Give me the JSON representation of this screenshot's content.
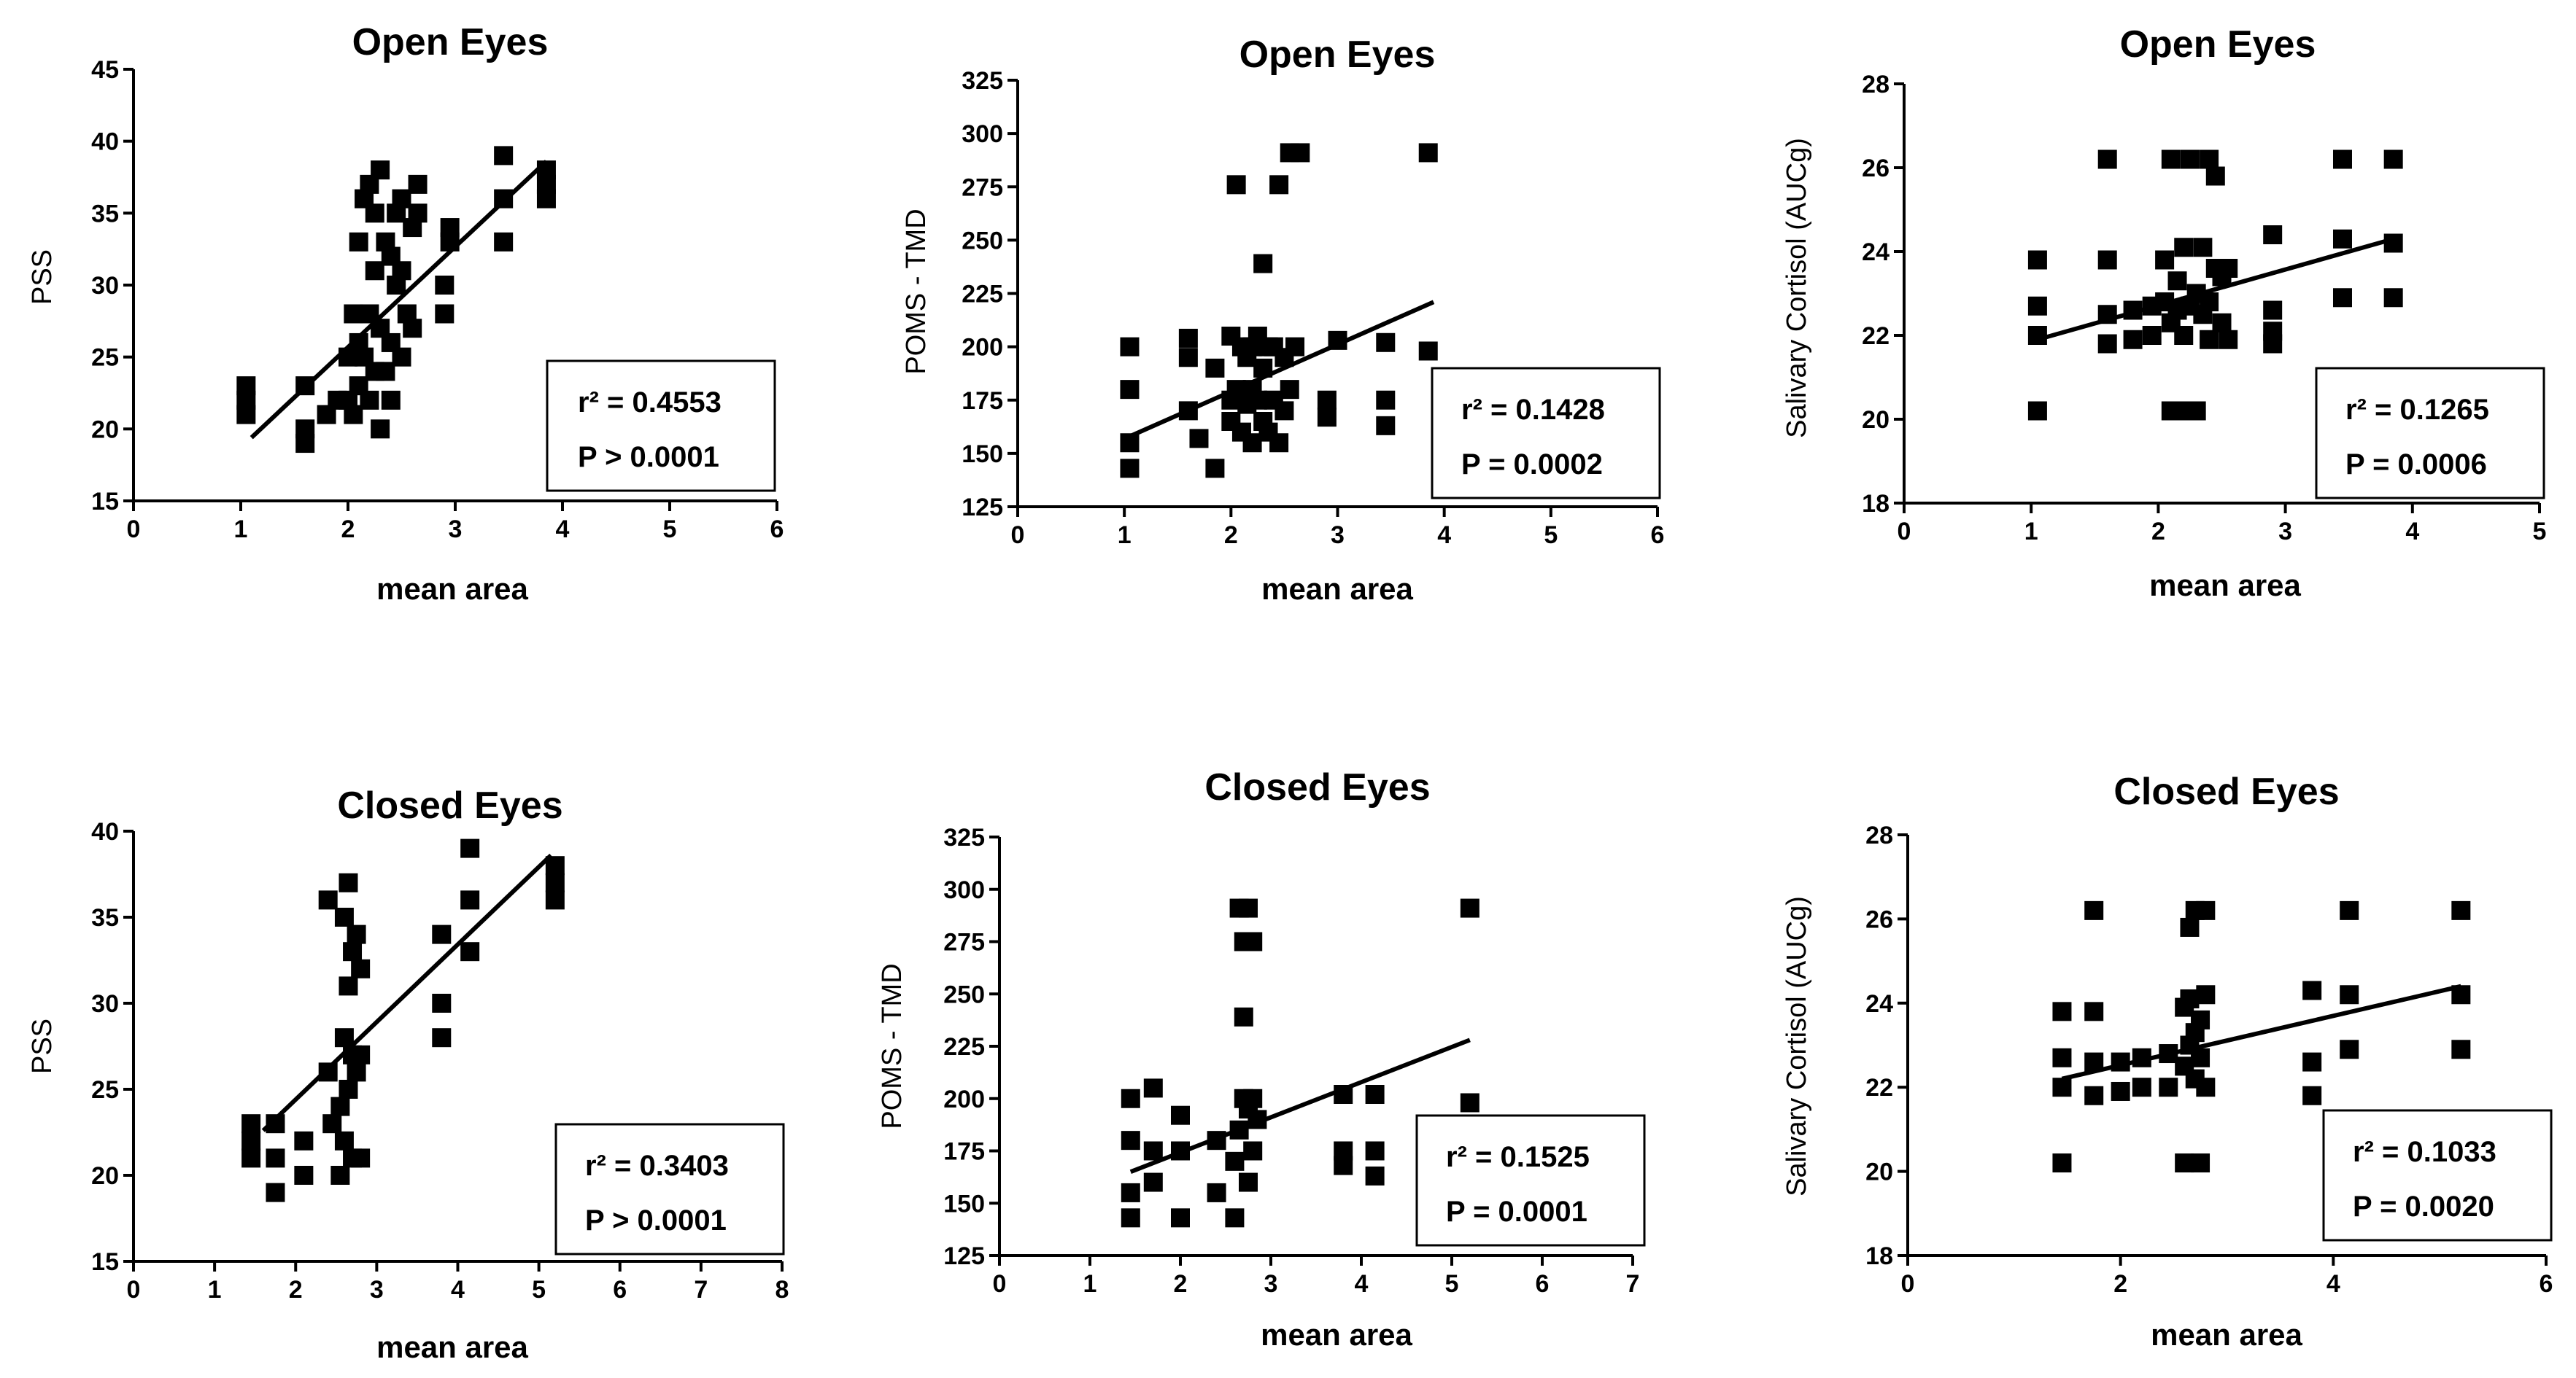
{
  "figure": {
    "panels": [
      {
        "title": "Open Eyes",
        "xlabel": "mean area",
        "ylabel": "PSS",
        "r2_label": "r² = 0.4553",
        "p_label": "P  > 0.0001"
      },
      {
        "title": "Open Eyes",
        "xlabel": "mean area",
        "ylabel": "POMS - TMD",
        "r2_label": "r² = 0.1428",
        "p_label": "P  = 0.0002"
      },
      {
        "title": "Open Eyes",
        "xlabel": "mean area",
        "ylabel": "Salivary Cortisol (AUCg)",
        "r2_label": "r² = 0.1265",
        "p_label": "P  = 0.0006"
      },
      {
        "title": "Closed Eyes",
        "xlabel": "mean area",
        "ylabel": "PSS",
        "r2_label": "r² = 0.3403",
        "p_label": "P  > 0.0001"
      },
      {
        "title": "Closed Eyes",
        "xlabel": "mean area",
        "ylabel": "POMS - TMD",
        "r2_label": "r² = 0.1525",
        "p_label": "P  = 0.0001"
      },
      {
        "title": "Closed Eyes",
        "xlabel": "mean area",
        "ylabel": "Salivary Cortisol (AUCg)",
        "r2_label": "r² = 0.1033",
        "p_label": "P  = 0.0020"
      }
    ]
  },
  "chart_data": [
    {
      "type": "scatter",
      "title": "Open Eyes",
      "xlabel": "mean area",
      "ylabel": "PSS",
      "xlim": [
        0,
        6
      ],
      "ylim": [
        15,
        45
      ],
      "xticks": [
        0,
        1,
        2,
        3,
        4,
        5,
        6
      ],
      "yticks": [
        15,
        20,
        25,
        30,
        35,
        40,
        45
      ],
      "x": [
        1.05,
        1.05,
        1.05,
        1.6,
        1.6,
        1.6,
        1.8,
        1.9,
        2.0,
        2.0,
        2.05,
        2.05,
        2.1,
        2.1,
        2.1,
        2.15,
        2.15,
        2.2,
        2.2,
        2.2,
        2.25,
        2.25,
        2.25,
        2.3,
        2.3,
        2.3,
        2.35,
        2.35,
        2.4,
        2.4,
        2.4,
        2.45,
        2.45,
        2.5,
        2.5,
        2.5,
        2.55,
        2.6,
        2.6,
        2.65,
        2.65,
        2.9,
        2.9,
        2.95,
        2.95,
        3.45,
        3.45,
        3.45,
        3.85,
        3.85,
        3.85
      ],
      "y": [
        21,
        22,
        23,
        19,
        20,
        23,
        21,
        22,
        22,
        25,
        21,
        28,
        23,
        26,
        33,
        25,
        36,
        22,
        28,
        37,
        24,
        31,
        35,
        20,
        27,
        38,
        24,
        33,
        22,
        26,
        32,
        30,
        35,
        25,
        31,
        36,
        28,
        27,
        34,
        35,
        37,
        28,
        30,
        33,
        34,
        33,
        36,
        39,
        36,
        37,
        38
      ],
      "fit": {
        "x": [
          1.1,
          3.85
        ],
        "y": [
          19.4,
          38.6
        ]
      },
      "r2": 0.4553,
      "p": "> 0.0001"
    },
    {
      "type": "scatter",
      "title": "Open Eyes",
      "xlabel": "mean area",
      "ylabel": "POMS - TMD",
      "xlim": [
        0,
        6
      ],
      "ylim": [
        125,
        325
      ],
      "xticks": [
        0,
        1,
        2,
        3,
        4,
        5,
        6
      ],
      "yticks": [
        125,
        150,
        175,
        200,
        225,
        250,
        275,
        300,
        325
      ],
      "x": [
        1.05,
        1.05,
        1.05,
        1.05,
        1.6,
        1.6,
        1.6,
        1.7,
        1.85,
        1.85,
        2.0,
        2.0,
        2.0,
        2.05,
        2.05,
        2.1,
        2.1,
        2.15,
        2.15,
        2.2,
        2.2,
        2.2,
        2.25,
        2.25,
        2.3,
        2.3,
        2.3,
        2.35,
        2.35,
        2.4,
        2.4,
        2.45,
        2.45,
        2.5,
        2.5,
        2.55,
        2.55,
        2.6,
        2.65,
        2.9,
        2.9,
        3.0,
        3.45,
        3.45,
        3.45,
        3.85,
        3.85
      ],
      "y": [
        143,
        155,
        180,
        200,
        170,
        195,
        204,
        157,
        143,
        190,
        165,
        175,
        205,
        180,
        276,
        160,
        200,
        173,
        195,
        155,
        180,
        200,
        175,
        205,
        165,
        190,
        239,
        160,
        200,
        175,
        200,
        155,
        276,
        170,
        195,
        180,
        291,
        200,
        291,
        167,
        175,
        203,
        163,
        175,
        202,
        198,
        291
      ],
      "fit": {
        "x": [
          1.05,
          3.9
        ],
        "y": [
          158,
          221
        ]
      },
      "r2": 0.1428,
      "p": "= 0.0002"
    },
    {
      "type": "scatter",
      "title": "Open Eyes",
      "xlabel": "mean area",
      "ylabel": "Salivary Cortisol (AUCg)",
      "xlim": [
        0,
        5
      ],
      "ylim": [
        18,
        28
      ],
      "xticks": [
        0,
        1,
        2,
        3,
        4,
        5
      ],
      "yticks": [
        18,
        20,
        22,
        24,
        26,
        28
      ],
      "x": [
        1.05,
        1.05,
        1.05,
        1.05,
        1.6,
        1.6,
        1.6,
        1.6,
        1.8,
        1.8,
        1.95,
        1.95,
        2.05,
        2.05,
        2.1,
        2.1,
        2.1,
        2.15,
        2.15,
        2.2,
        2.2,
        2.2,
        2.25,
        2.25,
        2.3,
        2.3,
        2.35,
        2.35,
        2.4,
        2.4,
        2.4,
        2.45,
        2.45,
        2.5,
        2.5,
        2.55,
        2.55,
        2.9,
        2.9,
        2.9,
        2.9,
        3.45,
        3.45,
        3.45,
        3.85,
        3.85,
        3.85
      ],
      "y": [
        20.2,
        22.0,
        22.7,
        23.8,
        21.8,
        22.5,
        23.8,
        26.2,
        21.9,
        22.6,
        22.0,
        22.7,
        22.8,
        23.8,
        20.2,
        22.3,
        26.2,
        22.6,
        23.3,
        20.2,
        22.0,
        24.1,
        22.7,
        26.2,
        20.2,
        23.0,
        22.5,
        24.1,
        21.9,
        22.8,
        26.2,
        23.6,
        25.8,
        22.3,
        23.4,
        21.9,
        23.6,
        21.8,
        22.1,
        22.6,
        24.4,
        22.9,
        24.3,
        26.2,
        22.9,
        24.2,
        26.2
      ],
      "fit": {
        "x": [
          1.05,
          3.85
        ],
        "y": [
          21.9,
          24.3
        ]
      },
      "r2": 0.1265,
      "p": "= 0.0006"
    },
    {
      "type": "scatter",
      "title": "Closed Eyes",
      "xlabel": "mean area",
      "ylabel": "PSS",
      "xlim": [
        0,
        8
      ],
      "ylim": [
        15,
        40
      ],
      "xticks": [
        0,
        1,
        2,
        3,
        4,
        5,
        6,
        7,
        8
      ],
      "yticks": [
        15,
        20,
        25,
        30,
        35,
        40
      ],
      "x": [
        1.45,
        1.45,
        1.45,
        1.75,
        1.75,
        1.75,
        2.1,
        2.1,
        2.4,
        2.4,
        2.45,
        2.55,
        2.55,
        2.6,
        2.6,
        2.6,
        2.65,
        2.65,
        2.65,
        2.7,
        2.7,
        2.7,
        2.75,
        2.75,
        2.8,
        2.8,
        2.8,
        3.8,
        3.8,
        3.8,
        4.15,
        4.15,
        4.15,
        5.2,
        5.2,
        5.2
      ],
      "y": [
        21,
        22,
        23,
        19,
        21,
        23,
        20,
        22,
        26,
        36,
        23,
        20,
        24,
        22,
        28,
        35,
        25,
        31,
        37,
        21,
        27,
        33,
        26,
        34,
        21,
        27,
        32,
        28,
        30,
        34,
        33,
        36,
        39,
        36,
        37,
        38
      ],
      "fit": {
        "x": [
          1.6,
          5.15
        ],
        "y": [
          22.6,
          38.6
        ]
      },
      "r2": 0.3403,
      "p": "> 0.0001"
    },
    {
      "type": "scatter",
      "title": "Closed Eyes",
      "xlabel": "mean area",
      "ylabel": "POMS - TMD",
      "xlim": [
        0,
        7
      ],
      "ylim": [
        125,
        325
      ],
      "xticks": [
        0,
        1,
        2,
        3,
        4,
        5,
        6,
        7
      ],
      "yticks": [
        125,
        150,
        175,
        200,
        225,
        250,
        275,
        300,
        325
      ],
      "x": [
        1.45,
        1.45,
        1.45,
        1.45,
        1.7,
        1.7,
        1.7,
        2.0,
        2.0,
        2.0,
        2.4,
        2.4,
        2.6,
        2.6,
        2.65,
        2.65,
        2.7,
        2.7,
        2.7,
        2.75,
        2.75,
        2.75,
        2.8,
        2.8,
        2.8,
        2.85,
        3.8,
        3.8,
        3.8,
        4.15,
        4.15,
        4.15,
        5.2,
        5.2
      ],
      "y": [
        143,
        155,
        180,
        200,
        160,
        175,
        205,
        143,
        175,
        192,
        155,
        180,
        143,
        170,
        185,
        291,
        200,
        239,
        275,
        160,
        195,
        291,
        175,
        200,
        275,
        190,
        168,
        175,
        202,
        163,
        175,
        202,
        198,
        291
      ],
      "fit": {
        "x": [
          1.45,
          5.2
        ],
        "y": [
          165,
          228
        ]
      },
      "r2": 0.1525,
      "p": "= 0.0001"
    },
    {
      "type": "scatter",
      "title": "Closed Eyes",
      "xlabel": "mean area",
      "ylabel": "Salivary Cortisol (AUCg)",
      "xlim": [
        0,
        6
      ],
      "ylim": [
        18,
        28
      ],
      "xticks": [
        0,
        2,
        4,
        6
      ],
      "yticks": [
        18,
        20,
        22,
        24,
        26,
        28
      ],
      "x": [
        1.45,
        1.45,
        1.45,
        1.45,
        1.75,
        1.75,
        1.75,
        1.75,
        2.0,
        2.0,
        2.2,
        2.2,
        2.45,
        2.45,
        2.6,
        2.6,
        2.6,
        2.65,
        2.65,
        2.65,
        2.7,
        2.7,
        2.7,
        2.75,
        2.75,
        2.75,
        2.8,
        2.8,
        2.8,
        3.8,
        3.8,
        3.8,
        4.15,
        4.15,
        4.15,
        5.2,
        5.2,
        5.2
      ],
      "y": [
        20.2,
        22.0,
        22.7,
        23.8,
        21.8,
        22.6,
        23.8,
        26.2,
        21.9,
        22.6,
        22.0,
        22.7,
        22.0,
        22.8,
        20.2,
        22.5,
        23.9,
        23.0,
        24.1,
        25.8,
        22.2,
        23.3,
        26.2,
        20.2,
        22.7,
        23.6,
        22.0,
        24.2,
        26.2,
        21.8,
        22.6,
        24.3,
        22.9,
        24.2,
        26.2,
        22.9,
        24.2,
        26.2
      ],
      "fit": {
        "x": [
          1.45,
          5.2
        ],
        "y": [
          22.2,
          24.4
        ]
      },
      "r2": 0.1033,
      "p": "= 0.0020"
    }
  ]
}
